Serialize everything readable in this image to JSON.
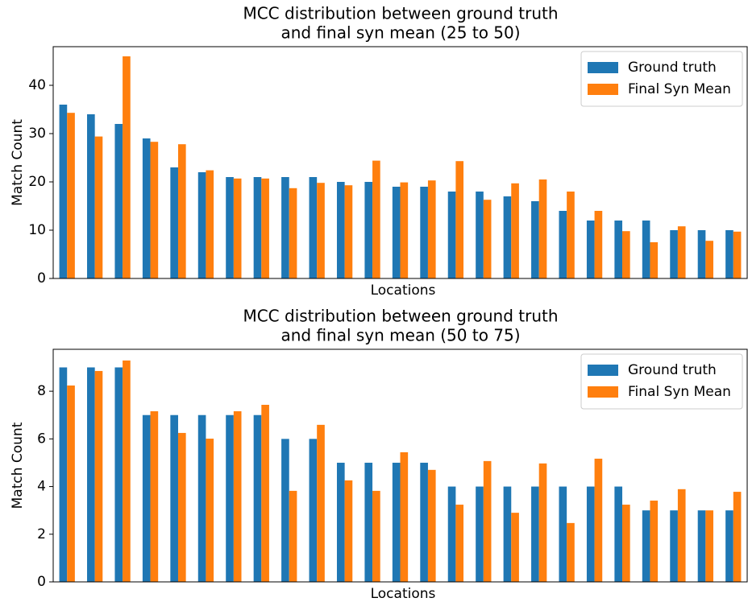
{
  "chart_data": [
    {
      "type": "bar",
      "title": [
        "MCC distribution between ground truth",
        "and final syn mean (25 to 50)"
      ],
      "xlabel": "Locations",
      "ylabel": "Match Count",
      "series": [
        {
          "name": "Ground truth",
          "color": "#1f77b4",
          "values": [
            36,
            34,
            32,
            29,
            23,
            22,
            21,
            21,
            21,
            21,
            20,
            20,
            19,
            19,
            18,
            18,
            17,
            16,
            14,
            12,
            12,
            12,
            10,
            10,
            10
          ]
        },
        {
          "name": "Final Syn Mean",
          "color": "#ff7f0e",
          "values": [
            34.3,
            29.4,
            46,
            28.3,
            27.8,
            22.4,
            20.7,
            20.7,
            18.7,
            19.8,
            19.3,
            24.4,
            19.9,
            20.3,
            24.3,
            16.3,
            19.7,
            20.5,
            18.0,
            14.0,
            9.8,
            7.5,
            10.8,
            7.8,
            9.7
          ]
        }
      ],
      "ylim": [
        0,
        48
      ],
      "yticks": [
        0,
        10,
        20,
        30,
        40
      ],
      "legend": "upper right"
    },
    {
      "type": "bar",
      "title": [
        "MCC distribution between ground truth",
        "and final syn mean (50 to 75)"
      ],
      "xlabel": "Locations",
      "ylabel": "Match Count",
      "series": [
        {
          "name": "Ground truth",
          "color": "#1f77b4",
          "values": [
            9,
            9,
            9,
            7,
            7,
            7,
            7,
            7,
            6,
            6,
            5,
            5,
            5,
            5,
            4,
            4,
            4,
            4,
            4,
            4,
            4,
            3,
            3,
            3,
            3
          ]
        },
        {
          "name": "Final Syn Mean",
          "color": "#ff7f0e",
          "values": [
            8.24,
            8.85,
            9.29,
            7.16,
            6.25,
            6.01,
            7.16,
            7.43,
            3.82,
            6.59,
            4.26,
            3.82,
            5.44,
            4.7,
            3.24,
            5.07,
            2.9,
            4.97,
            2.47,
            5.17,
            3.24,
            3.41,
            3.89,
            3.0,
            3.78
          ]
        }
      ],
      "ylim": [
        0,
        9.76
      ],
      "yticks": [
        0,
        2,
        4,
        6,
        8
      ],
      "legend": "upper right"
    }
  ]
}
